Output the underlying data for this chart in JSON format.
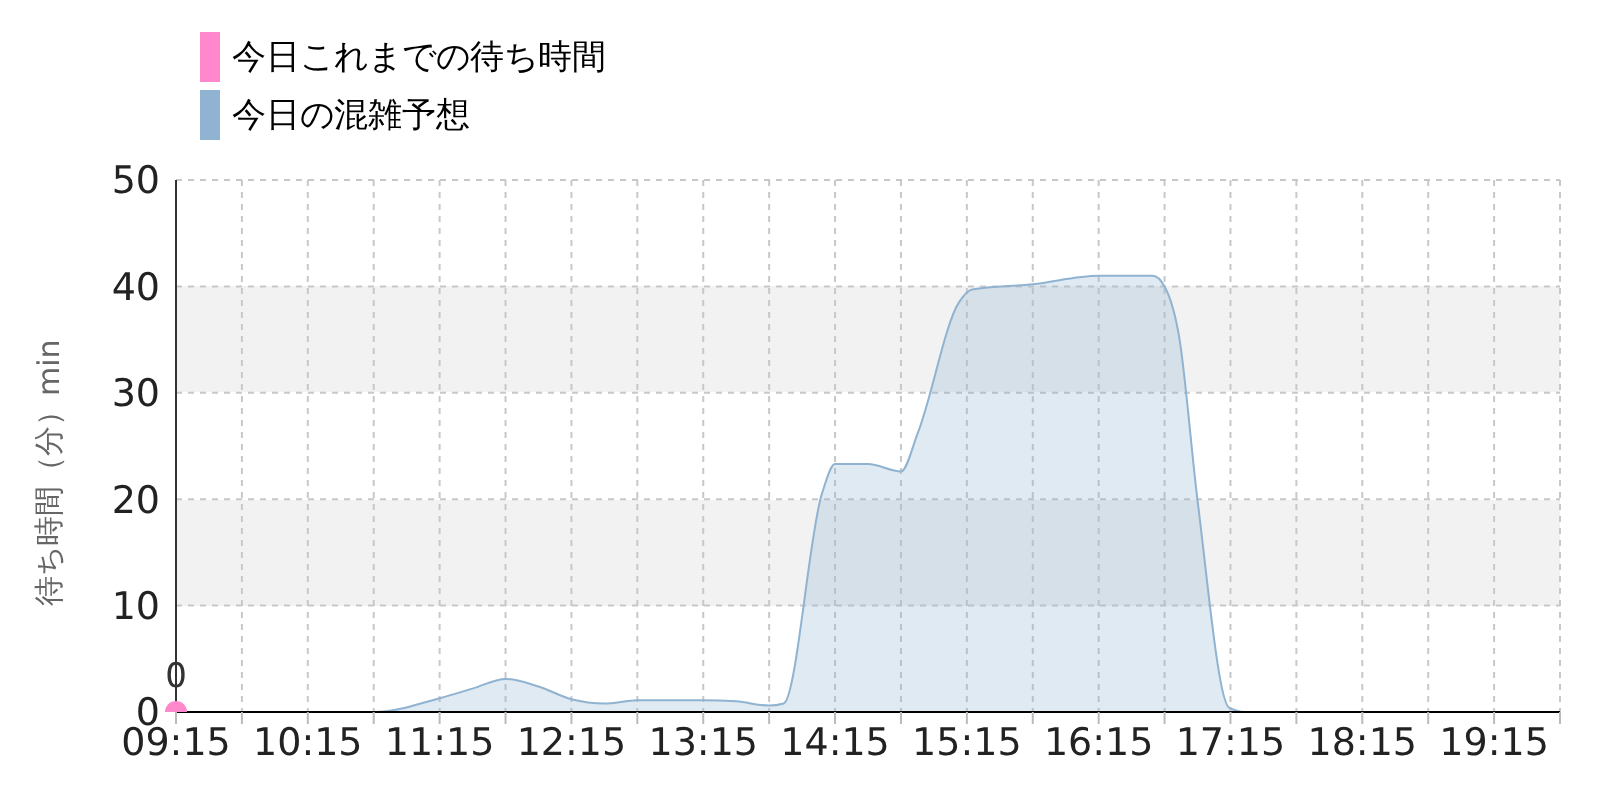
{
  "chart_data": {
    "type": "area",
    "ylabel": "待ち時間（分）min",
    "legend": "top left",
    "grid": true,
    "xlim": [
      9.25,
      19.75
    ],
    "xticks": [
      {
        "value": 9.25,
        "label": "09:15"
      },
      {
        "value": 9.75,
        "label": null
      },
      {
        "value": 10.25,
        "label": "10:15"
      },
      {
        "value": 10.75,
        "label": null
      },
      {
        "value": 11.25,
        "label": "11:15"
      },
      {
        "value": 11.75,
        "label": null
      },
      {
        "value": 12.25,
        "label": "12:15"
      },
      {
        "value": 12.75,
        "label": null
      },
      {
        "value": 13.25,
        "label": "13:15"
      },
      {
        "value": 13.75,
        "label": null
      },
      {
        "value": 14.25,
        "label": "14:15"
      },
      {
        "value": 14.75,
        "label": null
      },
      {
        "value": 15.25,
        "label": "15:15"
      },
      {
        "value": 15.75,
        "label": null
      },
      {
        "value": 16.25,
        "label": "16:15"
      },
      {
        "value": 16.75,
        "label": null
      },
      {
        "value": 17.25,
        "label": "17:15"
      },
      {
        "value": 17.75,
        "label": null
      },
      {
        "value": 18.25,
        "label": "18:15"
      },
      {
        "value": 18.75,
        "label": null
      },
      {
        "value": 19.25,
        "label": "19:15"
      },
      {
        "value": 19.75,
        "label": null
      }
    ],
    "ylim": [
      0,
      50
    ],
    "yticks": [
      0,
      10,
      20,
      30,
      40,
      50
    ],
    "series": [
      {
        "name": "今日これまでの待ち時間",
        "type": "scatter",
        "color": "#ff88cc",
        "marker": "circle",
        "x": [
          9.25
        ],
        "values": [
          0
        ],
        "value_labels": [
          "0"
        ]
      },
      {
        "name": "今日の混雑予想",
        "color": "#8fb3d0",
        "marker": "none",
        "x": [
          9.25,
          9.75,
          10.25,
          10.75,
          11.25,
          11.5,
          11.75,
          12.0,
          12.25,
          12.5,
          12.75,
          13.25,
          13.5,
          13.75,
          13.86,
          14.15,
          14.25,
          14.5,
          14.75,
          14.88,
          15.19,
          15.29,
          15.75,
          16.25,
          16.66,
          16.75,
          16.86,
          17.0,
          17.24,
          17.36,
          17.67,
          18.25,
          18.75,
          19.25,
          19.75
        ],
        "values": [
          0,
          0,
          0,
          0,
          1.3,
          2.2,
          3.1,
          2.4,
          1.2,
          0.8,
          1.1,
          1.1,
          1.0,
          0.6,
          0.8,
          20.5,
          23.3,
          23.3,
          22.6,
          26.3,
          38.5,
          39.7,
          40.2,
          41,
          41,
          40,
          35.3,
          19.9,
          0.4,
          0,
          0,
          0,
          0,
          0,
          0
        ]
      }
    ]
  }
}
